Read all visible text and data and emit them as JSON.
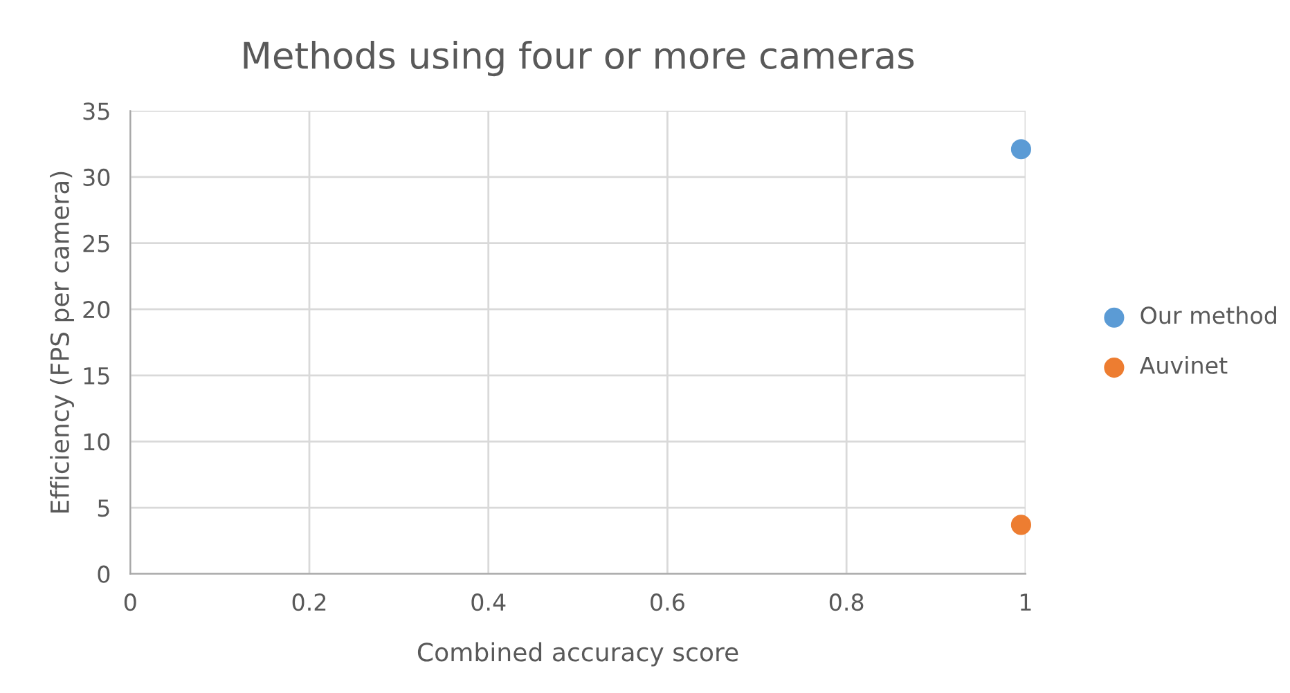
{
  "chart_data": {
    "type": "scatter",
    "title": "Methods using four or more cameras",
    "xlabel": "Combined accuracy score",
    "ylabel": "Efficiency (FPS per camera)",
    "series": [
      {
        "name": "Our method",
        "color": "#5b9bd5",
        "x": [
          0.995
        ],
        "values": [
          32.1
        ]
      },
      {
        "name": "Auvinet",
        "color": "#ed7d31",
        "x": [
          0.995
        ],
        "values": [
          3.7
        ]
      }
    ],
    "xlim": [
      0,
      1
    ],
    "xticks": [
      0,
      0.2,
      0.4,
      0.6,
      0.8,
      1
    ],
    "ylim": [
      0,
      35
    ],
    "yticks": [
      0,
      5,
      10,
      15,
      20,
      25,
      30,
      35
    ],
    "grid": true,
    "legend": "right",
    "marker": "circle"
  }
}
